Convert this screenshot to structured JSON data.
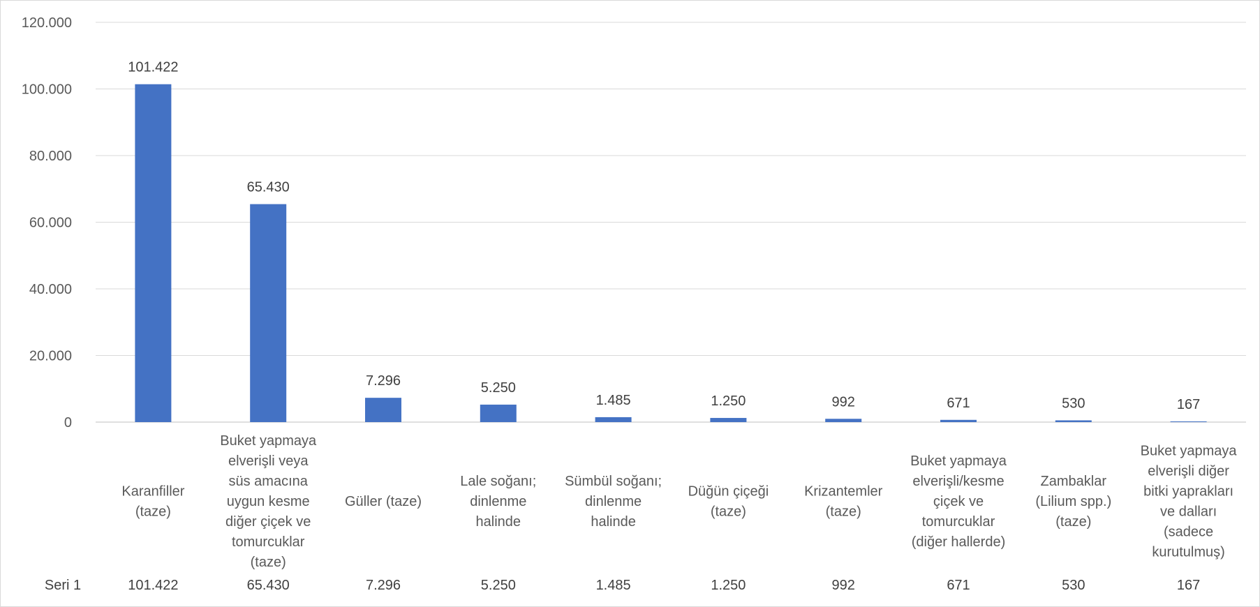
{
  "chart_data": {
    "type": "bar",
    "title": "",
    "xlabel": "",
    "ylabel": "",
    "ylim": [
      0,
      120000
    ],
    "yticks": [
      0,
      20000,
      40000,
      60000,
      80000,
      100000,
      120000
    ],
    "ytick_labels": [
      "0",
      "20.000",
      "40.000",
      "60.000",
      "80.000",
      "100.000",
      "120.000"
    ],
    "grid": true,
    "bar_color": "#4472C4",
    "categories": [
      [
        "Karanfiller",
        "(taze)"
      ],
      [
        "Buket yapmaya",
        "elverişli veya",
        "süs amacına",
        "uygun kesme",
        "diğer çiçek ve",
        "tomurcuklar",
        "(taze)"
      ],
      [
        "Güller (taze)"
      ],
      [
        "Lale soğanı;",
        "dinlenme",
        "halinde"
      ],
      [
        "Sümbül soğanı;",
        "dinlenme",
        "halinde"
      ],
      [
        "Düğün çiçeği",
        "(taze)"
      ],
      [
        "Krizantemler",
        "(taze)"
      ],
      [
        "Buket yapmaya",
        "elverişli/kesme",
        "çiçek ve",
        "tomurcuklar",
        "(diğer hallerde)"
      ],
      [
        "Zambaklar",
        "(Lilium spp.)",
        "(taze)"
      ],
      [
        "Buket yapmaya",
        "elverişli diğer",
        "bitki yaprakları",
        "ve dalları",
        "(sadece",
        "kurutulmuş)"
      ]
    ],
    "series": [
      {
        "name": "Seri 1",
        "values": [
          101422,
          65430,
          7296,
          5250,
          1485,
          1250,
          992,
          671,
          530,
          167
        ],
        "value_labels": [
          "101.422",
          "65.430",
          "7.296",
          "5.250",
          "1.485",
          "1.250",
          "992",
          "671",
          "530",
          "167"
        ]
      }
    ]
  }
}
